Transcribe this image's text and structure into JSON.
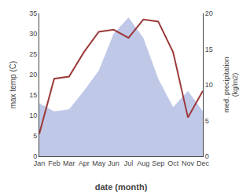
{
  "chart_data": {
    "type": "line",
    "xlabel": "date (month)",
    "ylabel": "max temp (C)",
    "y2label": "med. precipitation\n(kg/m2)",
    "categories": [
      "Jan",
      "Feb",
      "Mar",
      "Apr",
      "May",
      "Jun",
      "Jul",
      "Aug",
      "Sep",
      "Oct",
      "Nov",
      "Dec"
    ],
    "series": [
      {
        "type": "area",
        "color": "#c0c8e8",
        "values": [
          13.0,
          11.0,
          11.5,
          16.0,
          21.0,
          30.0,
          34.0,
          29.0,
          19.0,
          12.0,
          16.0,
          11.0
        ]
      },
      {
        "type": "line",
        "color": "#9b3a3a",
        "values": [
          5.5,
          19.0,
          19.5,
          25.5,
          30.5,
          31.0,
          29.0,
          33.5,
          33.0,
          25.5,
          9.5,
          16.0
        ]
      }
    ],
    "ylim": [
      0,
      35
    ],
    "yticks": [
      0,
      5,
      10,
      15,
      20,
      25,
      30,
      35
    ],
    "y2lim": [
      0,
      20
    ],
    "y2ticks": [
      0,
      5,
      10,
      15,
      20
    ],
    "grid": false
  }
}
